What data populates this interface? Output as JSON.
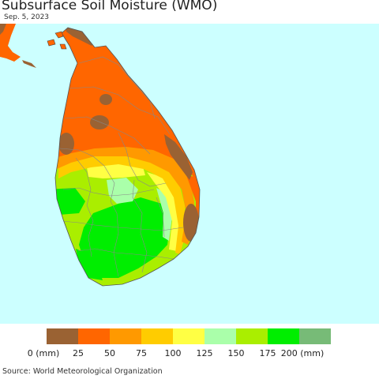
{
  "title": "Subsurface Soil Moisture (WMO)",
  "date": "Sep. 5, 2023",
  "legend": {
    "colors": [
      "#9a6233",
      "#ff6600",
      "#ff9900",
      "#ffcc00",
      "#ffff44",
      "#aaffaa",
      "#aaee00",
      "#00ee00",
      "#77bb77"
    ],
    "ticks": [
      "0 (mm)",
      "25",
      "50",
      "75",
      "100",
      "125",
      "150",
      "175",
      "200 (mm)"
    ]
  },
  "source": "Source: World Meteorological Organization",
  "map": {
    "colors": {
      "ocean": "#ccffff",
      "dry": "#9a6233",
      "orange": "#ff6600",
      "amber": "#ff9900",
      "yellow": "#ffcc00",
      "light_yellow": "#ffff44",
      "pale_green": "#aaffaa",
      "lime": "#aaee00",
      "green": "#00ee00",
      "district_border": "#888888"
    }
  }
}
